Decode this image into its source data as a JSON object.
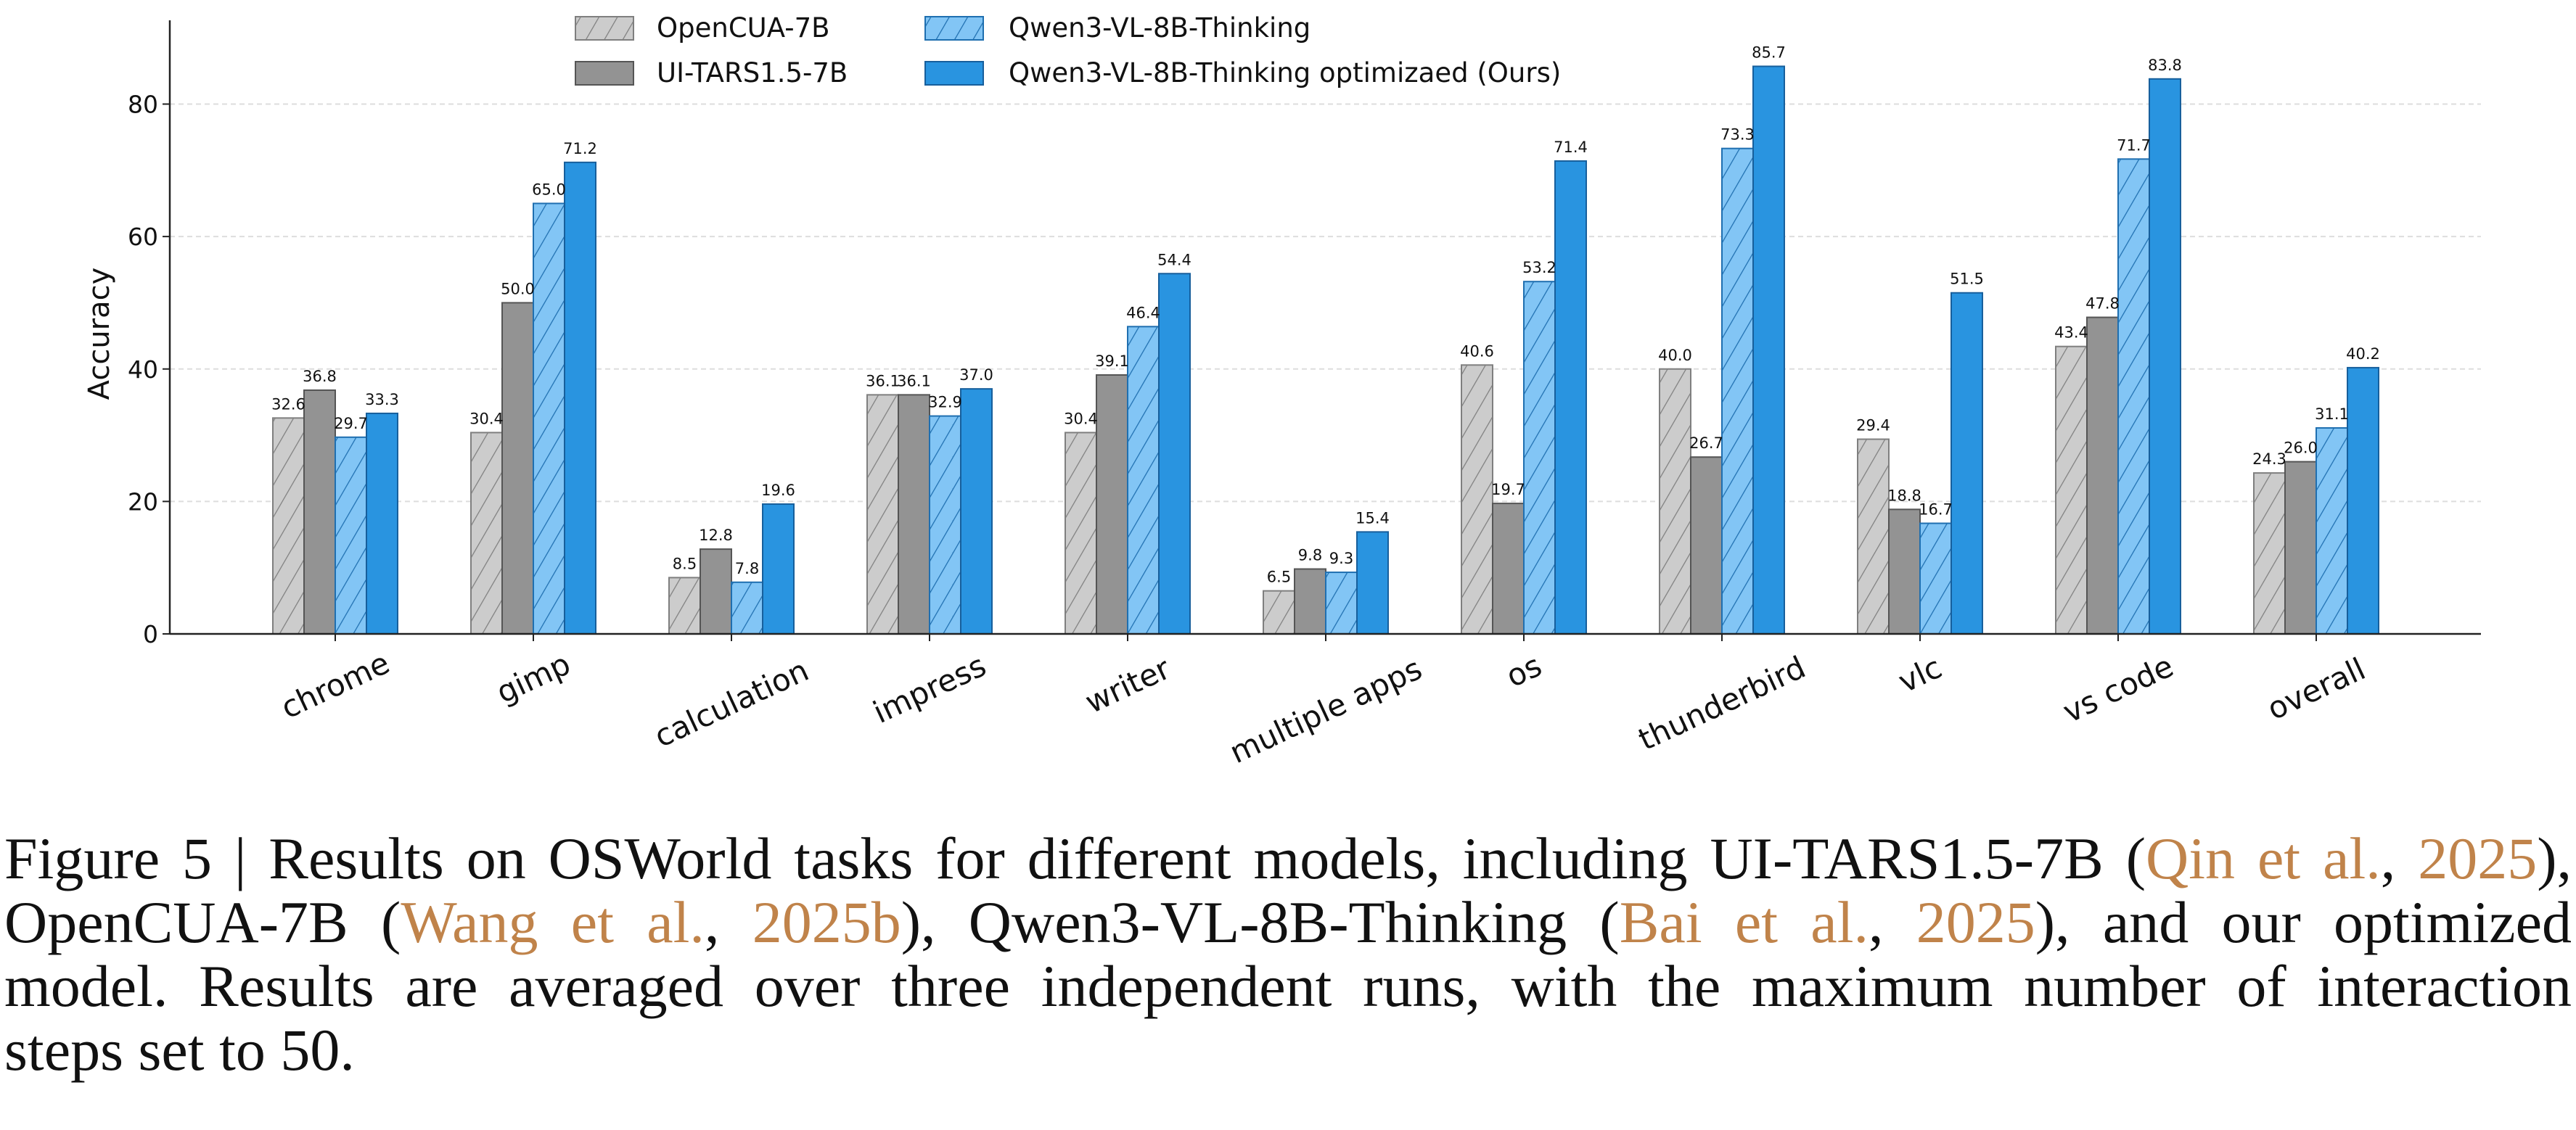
{
  "chart_data": {
    "type": "bar",
    "title": "",
    "xlabel": "",
    "ylabel": "Accuracy",
    "ylim": [
      0,
      92
    ],
    "yticks": [
      0,
      20,
      40,
      60,
      80
    ],
    "grid": "horizontal dashed",
    "legend_position": "top-center",
    "categories": [
      "chrome",
      "gimp",
      "calculation",
      "impress",
      "writer",
      "multiple apps",
      "os",
      "thunderbird",
      "vlc",
      "vs code",
      "overall"
    ],
    "series": [
      {
        "name": "OpenCUA-7B",
        "color": "#cccccc",
        "edge": "#7f7f7f",
        "hatch": true,
        "values": [
          32.6,
          30.4,
          8.5,
          36.1,
          30.4,
          6.5,
          40.6,
          40.0,
          29.4,
          43.4,
          24.3
        ],
        "labels": [
          "32.6",
          "30.4",
          "8.5",
          "36.1",
          "30.4",
          "6.5",
          "40.6",
          "40.0",
          "29.4",
          "43.4",
          "24.3"
        ]
      },
      {
        "name": "UI-TARS1.5-7B",
        "color": "#939393",
        "edge": "#555555",
        "hatch": false,
        "values": [
          36.8,
          50.0,
          12.8,
          36.1,
          39.1,
          9.8,
          19.7,
          26.7,
          18.8,
          47.8,
          26.0
        ],
        "labels": [
          "36.8",
          "50.0",
          "12.8",
          "36.1",
          "39.1",
          "9.8",
          "19.7",
          "26.7",
          "18.8",
          "47.8",
          "26.0"
        ]
      },
      {
        "name": "Qwen3-VL-8B-Thinking",
        "color": "#82c5f5",
        "edge": "#1f6fb0",
        "hatch": true,
        "values": [
          29.7,
          65.0,
          7.8,
          32.9,
          46.4,
          9.3,
          53.2,
          73.3,
          16.7,
          71.7,
          31.1
        ],
        "labels": [
          "29.7",
          "65.0",
          "7.8",
          "32.9",
          "46.4",
          "9.3",
          "53.2",
          "73.3",
          "16.7",
          "71.7",
          "31.1"
        ]
      },
      {
        "name": "Qwen3-VL-8B-Thinking optimizaed (Ours)",
        "color": "#2994e0",
        "edge": "#175f9c",
        "hatch": false,
        "values": [
          33.3,
          71.2,
          19.6,
          37.0,
          54.4,
          15.4,
          71.4,
          85.7,
          51.5,
          83.8,
          40.2
        ],
        "labels": [
          "33.3",
          "71.2",
          "19.6",
          "37.0",
          "54.4",
          "15.4",
          "71.4",
          "85.7",
          "51.5",
          "83.8",
          "40.2"
        ]
      }
    ]
  },
  "caption": {
    "l1": {
      "a": "Figure 5 | Results on OSWorld tasks for different models, including UI-TARS1.5-7B (",
      "r1": "Qin et al.",
      "b": ", ",
      "r2": "2025",
      "c": "),"
    },
    "l2": {
      "a": "OpenCUA-7B (",
      "r1": "Wang et al.",
      "b": ", ",
      "r2": "2025b",
      "c": "), Qwen3-VL-8B-Thinking (",
      "r3": "Bai et al.",
      "d": ", ",
      "r4": "2025",
      "e": "), and our optimized"
    },
    "l3": "model. Results are averaged over three independent runs, with the maximum number of interaction",
    "l4": "steps set to 50."
  }
}
